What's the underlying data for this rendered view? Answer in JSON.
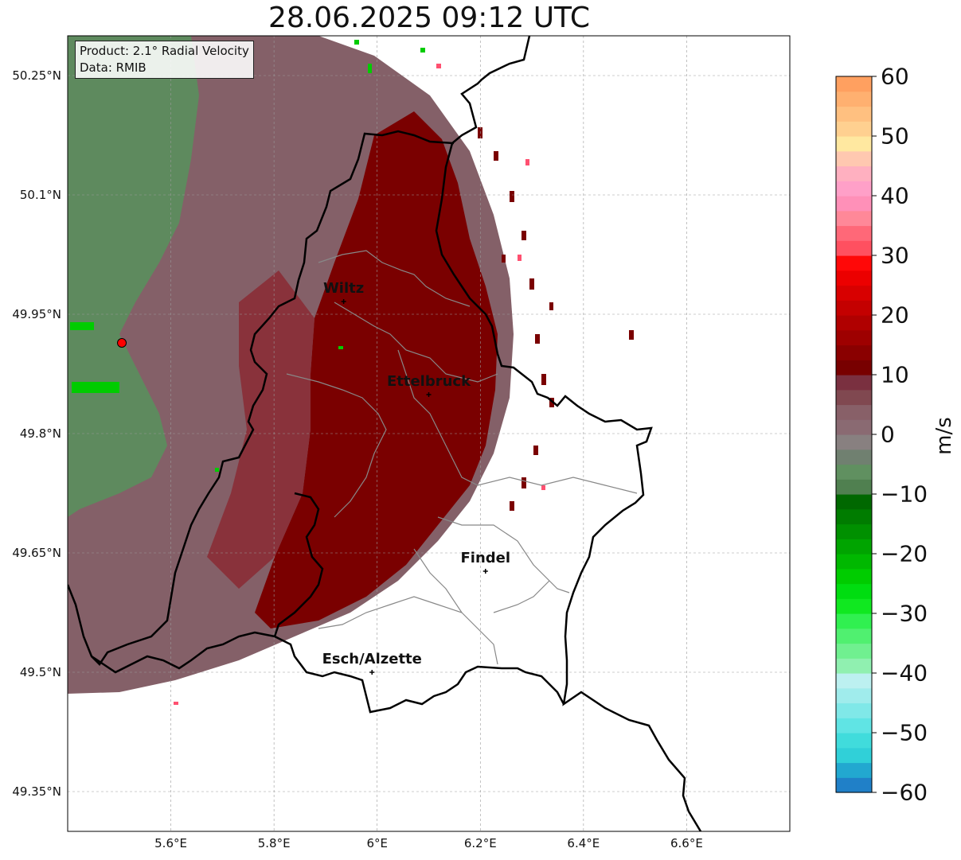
{
  "title": "28.06.2025 09:12 UTC",
  "info": {
    "product": "Product: 2.1° Radial Velocity",
    "source": "Data: RMIB"
  },
  "lat_ticks": [
    {
      "value": 50.25,
      "label": "50.25°N"
    },
    {
      "value": 50.1,
      "label": "50.1°N"
    },
    {
      "value": 49.95,
      "label": "49.95°N"
    },
    {
      "value": 49.8,
      "label": "49.8°N"
    },
    {
      "value": 49.65,
      "label": "49.65°N"
    },
    {
      "value": 49.5,
      "label": "49.5°N"
    },
    {
      "value": 49.35,
      "label": "49.35°N"
    }
  ],
  "lon_ticks": [
    {
      "value": 5.6,
      "label": "5.6°E"
    },
    {
      "value": 5.8,
      "label": "5.8°E"
    },
    {
      "value": 6.0,
      "label": "6°E"
    },
    {
      "value": 6.2,
      "label": "6.2°E"
    },
    {
      "value": 6.4,
      "label": "6.4°E"
    },
    {
      "value": 6.6,
      "label": "6.6°E"
    }
  ],
  "extent": {
    "lon_min": 5.4,
    "lon_max": 6.8,
    "lat_min": 49.3,
    "lat_max": 50.3
  },
  "cities": [
    {
      "name": "Wiltz",
      "lon": 5.935,
      "lat": 49.966
    },
    {
      "name": "Ettelbruck",
      "lon": 6.1,
      "lat": 49.849
    },
    {
      "name": "Findel",
      "lon": 6.21,
      "lat": 49.627
    },
    {
      "name": "Esch/Alzette",
      "lon": 5.99,
      "lat": 49.5
    }
  ],
  "radar_site": {
    "lon": 5.505,
    "lat": 49.914,
    "color": "#ff0000"
  },
  "colorbar": {
    "unit": "m/s",
    "ticks": [
      {
        "value": 60,
        "label": "60"
      },
      {
        "value": 50,
        "label": "50"
      },
      {
        "value": 40,
        "label": "40"
      },
      {
        "value": 30,
        "label": "30"
      },
      {
        "value": 20,
        "label": "20"
      },
      {
        "value": 10,
        "label": "10"
      },
      {
        "value": 0,
        "label": "0"
      },
      {
        "value": -10,
        "label": "−10"
      },
      {
        "value": -20,
        "label": "−20"
      },
      {
        "value": -30,
        "label": "−30"
      },
      {
        "value": -40,
        "label": "−40"
      },
      {
        "value": -50,
        "label": "−50"
      },
      {
        "value": -60,
        "label": "−60"
      }
    ],
    "colors": [
      "#2080c8",
      "#22a8d0",
      "#30d0d8",
      "#40dcdc",
      "#60e4e4",
      "#80e8e8",
      "#a0ecec",
      "#bcf0f0",
      "#90f0b0",
      "#70f090",
      "#50f070",
      "#30f050",
      "#10e820",
      "#00dd10",
      "#00cc00",
      "#00b800",
      "#00a400",
      "#009000",
      "#007c00",
      "#006800",
      "#508050",
      "#609060",
      "#708070",
      "#888080",
      "#8a6a72",
      "#886068",
      "#804850",
      "#7a3040",
      "#780000",
      "#8a0000",
      "#9e0000",
      "#b00000",
      "#c40000",
      "#d80000",
      "#ec0000",
      "#ff0808",
      "#ff5060",
      "#ff6878",
      "#ff8898",
      "#ff90b8",
      "#ffa0c8",
      "#ffb0c0",
      "#ffc8b0",
      "#ffe8a0",
      "#ffd090",
      "#ffc080",
      "#ffb070",
      "#ffa060"
    ]
  }
}
